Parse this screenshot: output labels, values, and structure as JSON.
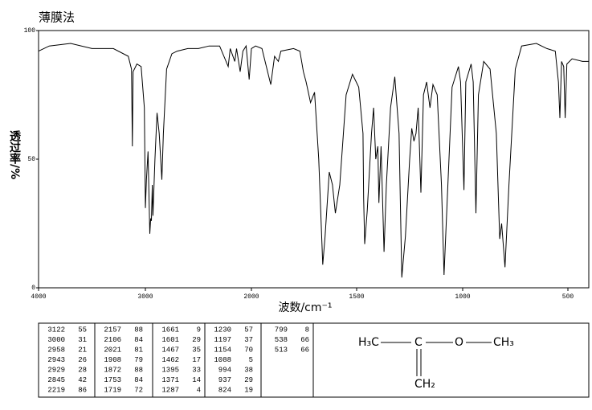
{
  "chart_data": {
    "type": "line",
    "title": "薄膜法",
    "xlabel": "波数/cm⁻¹",
    "ylabel": "透过率/%",
    "color": "#000000",
    "xlim": [
      4000,
      400
    ],
    "xticks": [
      4000,
      3000,
      2000,
      1500,
      1000,
      500
    ],
    "ylim": [
      0,
      100
    ],
    "yticks": [
      0,
      50,
      100
    ],
    "x": [
      4000,
      3900,
      3700,
      3500,
      3300,
      3160,
      3130,
      3122,
      3115,
      3080,
      3040,
      3010,
      3000,
      2990,
      2975,
      2958,
      2950,
      2943,
      2935,
      2929,
      2910,
      2890,
      2870,
      2845,
      2830,
      2800,
      2750,
      2700,
      2600,
      2500,
      2400,
      2300,
      2219,
      2200,
      2157,
      2140,
      2106,
      2080,
      2050,
      2021,
      2000,
      1980,
      1950,
      1908,
      1890,
      1872,
      1860,
      1800,
      1770,
      1753,
      1740,
      1719,
      1700,
      1680,
      1661,
      1650,
      1630,
      1615,
      1601,
      1580,
      1550,
      1520,
      1490,
      1470,
      1467,
      1462,
      1450,
      1430,
      1420,
      1410,
      1400,
      1395,
      1385,
      1371,
      1360,
      1340,
      1320,
      1300,
      1287,
      1270,
      1250,
      1240,
      1230,
      1220,
      1210,
      1197,
      1185,
      1170,
      1154,
      1140,
      1120,
      1100,
      1088,
      1075,
      1050,
      1020,
      1010,
      994,
      985,
      960,
      950,
      937,
      925,
      900,
      870,
      840,
      824,
      815,
      799,
      780,
      750,
      720,
      650,
      600,
      560,
      545,
      538,
      530,
      520,
      513,
      505,
      480,
      430,
      400
    ],
    "values": [
      92,
      94,
      95,
      93,
      93,
      90,
      85,
      55,
      84,
      87,
      86,
      70,
      31,
      42,
      53,
      21,
      27,
      26,
      40,
      28,
      50,
      68,
      60,
      42,
      60,
      85,
      91,
      92,
      93,
      93,
      94,
      94,
      86,
      93,
      88,
      93,
      84,
      92,
      94,
      81,
      93,
      94,
      93,
      79,
      90,
      88,
      92,
      93,
      92,
      84,
      80,
      72,
      76,
      50,
      9,
      20,
      45,
      40,
      29,
      40,
      75,
      83,
      78,
      60,
      35,
      17,
      30,
      60,
      70,
      50,
      55,
      33,
      55,
      14,
      40,
      70,
      82,
      60,
      4,
      20,
      50,
      62,
      57,
      60,
      70,
      37,
      75,
      80,
      70,
      79,
      75,
      40,
      5,
      30,
      78,
      86,
      80,
      38,
      80,
      87,
      80,
      29,
      75,
      88,
      85,
      60,
      19,
      25,
      8,
      40,
      85,
      94,
      95,
      93,
      92,
      80,
      66,
      88,
      86,
      66,
      87,
      89,
      88,
      88
    ]
  },
  "peak_table": [
    [
      [
        3122,
        55
      ],
      [
        3000,
        31
      ],
      [
        2958,
        21
      ],
      [
        2943,
        26
      ],
      [
        2929,
        28
      ],
      [
        2845,
        42
      ],
      [
        2219,
        86
      ]
    ],
    [
      [
        2157,
        88
      ],
      [
        2106,
        84
      ],
      [
        2021,
        81
      ],
      [
        1908,
        79
      ],
      [
        1872,
        88
      ],
      [
        1753,
        84
      ],
      [
        1719,
        72
      ]
    ],
    [
      [
        1661,
        9
      ],
      [
        1601,
        29
      ],
      [
        1467,
        35
      ],
      [
        1462,
        17
      ],
      [
        1395,
        33
      ],
      [
        1371,
        14
      ],
      [
        1287,
        4
      ]
    ],
    [
      [
        1230,
        57
      ],
      [
        1197,
        37
      ],
      [
        1154,
        70
      ],
      [
        1088,
        5
      ],
      [
        994,
        38
      ],
      [
        937,
        29
      ],
      [
        824,
        19
      ]
    ],
    [
      [
        799,
        8
      ],
      [
        538,
        66
      ],
      [
        513,
        66
      ]
    ]
  ],
  "structure": {
    "left": "H₃C",
    "center": "C",
    "oxygen": "O",
    "right": "CH₃",
    "bottom": "CH₂"
  }
}
